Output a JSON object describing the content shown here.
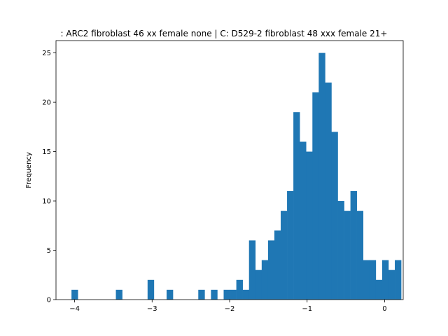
{
  "chart_data": {
    "type": "bar",
    "title": ": ARC2 fibroblast 46 xx female none | C: D529-2 fibroblast 48 xxx female 21+",
    "xlabel": "",
    "ylabel": "Frequency",
    "xlim": [
      -4.24,
      0.24
    ],
    "ylim": [
      0,
      26.25
    ],
    "xticks": [
      -4,
      -3,
      -2,
      -1,
      0
    ],
    "xtick_labels": [
      "−4",
      "−3",
      "−2",
      "−1",
      "0"
    ],
    "yticks": [
      0,
      5,
      10,
      15,
      20,
      25
    ],
    "ytick_labels": [
      "0",
      "5",
      "10",
      "15",
      "20",
      "25"
    ],
    "bar_color": "#1f77b4",
    "bin_start": -4.04,
    "bin_width": 0.0818,
    "counts": [
      1,
      0,
      0,
      0,
      0,
      0,
      0,
      1,
      0,
      0,
      0,
      0,
      2,
      0,
      0,
      1,
      0,
      0,
      0,
      0,
      1,
      0,
      1,
      0,
      1,
      1,
      2,
      1,
      6,
      3,
      4,
      6,
      7,
      9,
      11,
      19,
      16,
      15,
      21,
      25,
      22,
      17,
      10,
      9,
      11,
      9,
      4,
      4,
      2,
      4,
      3,
      4
    ]
  }
}
